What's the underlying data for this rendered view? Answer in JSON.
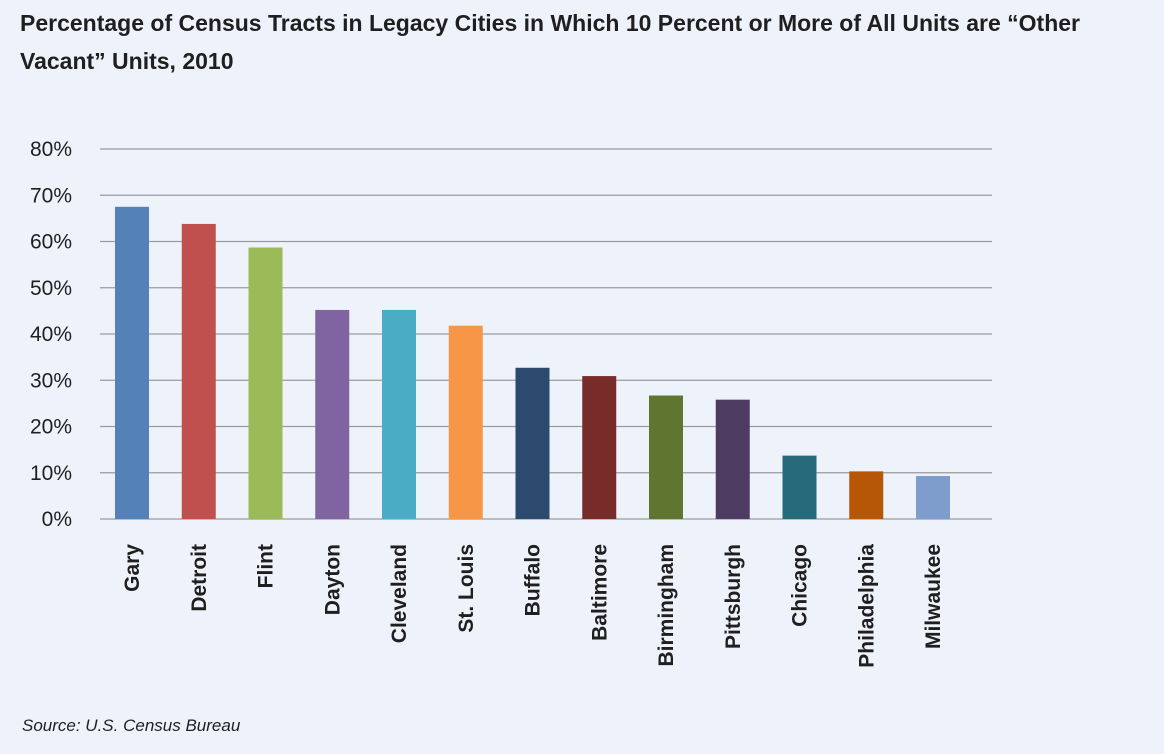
{
  "chart_data": {
    "type": "bar",
    "title": "Percentage of Census Tracts in Legacy Cities in Which 10 Percent or More of All Units are “Other Vacant” Units, 2010",
    "categories": [
      "Gary",
      "Detroit",
      "Flint",
      "Dayton",
      "Cleveland",
      "St. Louis",
      "Buffalo",
      "Baltimore",
      "Birmingham",
      "Pittsburgh",
      "Chicago",
      "Philadelphia",
      "Milwaukee"
    ],
    "values": [
      67.5,
      63.8,
      58.7,
      45.2,
      45.2,
      41.8,
      32.7,
      30.9,
      26.7,
      25.8,
      13.7,
      10.3,
      9.3
    ],
    "colors": [
      "#5581b9",
      "#c0504d",
      "#9bbb59",
      "#8064a2",
      "#4bacc6",
      "#f79646",
      "#2c4a6e",
      "#772c2a",
      "#5f7530",
      "#4d3b62",
      "#276a7c",
      "#b65708",
      "#7f9dcc"
    ],
    "ylim": [
      0,
      80
    ],
    "yticks": [
      0,
      10,
      20,
      30,
      40,
      50,
      60,
      70,
      80
    ],
    "ytick_labels": [
      "0%",
      "10%",
      "20%",
      "30%",
      "40%",
      "50%",
      "60%",
      "70%",
      "80%"
    ],
    "xlabel": "",
    "ylabel": "",
    "grid": true,
    "gridline_color": "#9a9a9a"
  },
  "source": "Source: U.S. Census Bureau"
}
